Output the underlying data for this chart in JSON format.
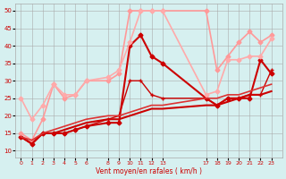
{
  "xlabel": "Vent moyen/en rafales ( km/h )",
  "ylabel": "",
  "bg_color": "#d6f0f0",
  "grid_color": "#aaaaaa",
  "xlim": [
    -0.5,
    24
  ],
  "ylim": [
    8,
    52
  ],
  "yticks": [
    10,
    15,
    20,
    25,
    30,
    35,
    40,
    45,
    50
  ],
  "xticks": [
    0,
    1,
    2,
    3,
    4,
    5,
    6,
    8,
    9,
    10,
    11,
    12,
    13,
    17,
    18,
    19,
    20,
    21,
    22,
    23
  ],
  "series": [
    {
      "x": [
        0,
        1,
        2,
        3,
        4,
        5,
        6,
        8,
        9,
        10,
        11,
        12,
        13,
        17,
        18,
        19,
        20,
        21,
        22,
        23
      ],
      "y": [
        14,
        12,
        15,
        15,
        15,
        16,
        17,
        18,
        18,
        40,
        43,
        37,
        35,
        25,
        23,
        25,
        25,
        25,
        36,
        32
      ],
      "color": "#cc0000",
      "lw": 1.5,
      "marker": "D",
      "ms": 2.5
    },
    {
      "x": [
        0,
        1,
        2,
        3,
        4,
        5,
        6,
        8,
        9,
        10,
        11,
        12,
        13,
        17,
        18,
        19,
        20,
        21,
        22,
        23
      ],
      "y": [
        14,
        12,
        15,
        15,
        15,
        16,
        17,
        19,
        20,
        30,
        30,
        26,
        25,
        25,
        23,
        25,
        25,
        26,
        26,
        33
      ],
      "color": "#cc0000",
      "lw": 1.0,
      "marker": "+",
      "ms": 3
    },
    {
      "x": [
        0,
        1,
        2,
        3,
        4,
        5,
        6,
        8,
        9,
        10,
        11,
        12,
        13,
        17,
        18,
        19,
        20,
        21,
        22,
        23
      ],
      "y": [
        15,
        13,
        19,
        29,
        25,
        26,
        30,
        30,
        32,
        50,
        50,
        50,
        50,
        50,
        33,
        37,
        41,
        44,
        41,
        43
      ],
      "color": "#ff9999",
      "lw": 1.2,
      "marker": "D",
      "ms": 2.5
    },
    {
      "x": [
        0,
        1,
        2,
        3,
        4,
        5,
        6,
        8,
        9,
        10,
        11,
        12,
        13,
        17,
        18,
        19,
        20,
        21,
        22,
        23
      ],
      "y": [
        25,
        19,
        23,
        29,
        26,
        26,
        30,
        31,
        33,
        41,
        50,
        50,
        50,
        26,
        27,
        36,
        36,
        37,
        37,
        42
      ],
      "color": "#ffaaaa",
      "lw": 1.2,
      "marker": "D",
      "ms": 2.5
    },
    {
      "x": [
        0,
        1,
        2,
        3,
        4,
        5,
        6,
        8,
        9,
        10,
        11,
        12,
        13,
        17,
        18,
        19,
        20,
        21,
        22,
        23
      ],
      "y": [
        14,
        12,
        15,
        15,
        16,
        17,
        18,
        19,
        19,
        20,
        21,
        22,
        22,
        23,
        23,
        24,
        25,
        26,
        26,
        27
      ],
      "color": "#cc0000",
      "lw": 1.5,
      "marker": null,
      "ms": 0
    },
    {
      "x": [
        0,
        1,
        2,
        3,
        4,
        5,
        6,
        8,
        9,
        10,
        11,
        12,
        13,
        17,
        18,
        19,
        20,
        21,
        22,
        23
      ],
      "y": [
        14,
        13,
        15,
        16,
        17,
        18,
        19,
        20,
        20,
        21,
        22,
        23,
        23,
        25,
        25,
        26,
        26,
        27,
        28,
        29
      ],
      "color": "#dd3333",
      "lw": 1.2,
      "marker": null,
      "ms": 0
    }
  ]
}
